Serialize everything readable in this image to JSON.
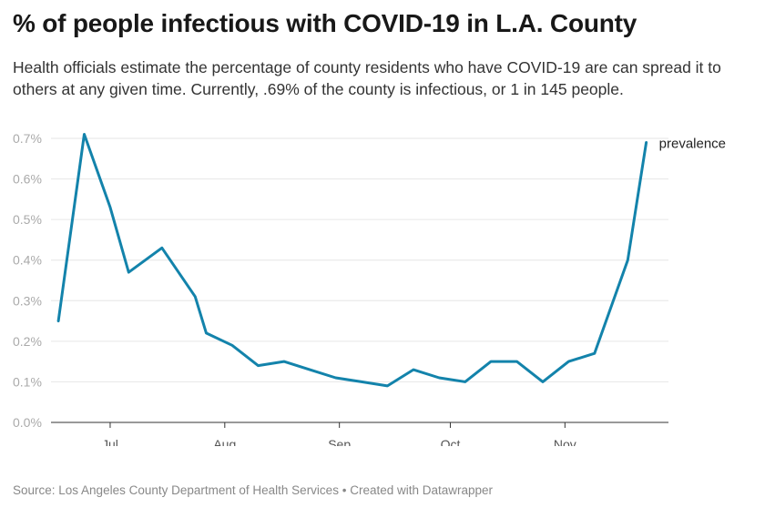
{
  "title": "% of people infectious with COVID-19 in L.A. County",
  "subtitle": "Health officials estimate the percentage of county residents who have COVID-19 are can spread it to others at any given time. Currently, .69% of the county is infectious, or 1 in 145 people.",
  "footer": {
    "source": "Source: Los Angeles County Department of Health Services",
    "separator": "•",
    "credit": "Created with Datawrapper"
  },
  "colors": {
    "line": "#1383ab",
    "grid": "#e6e6e6",
    "axis": "#333333",
    "tick_label": "#aaaaaa"
  },
  "chart_data": {
    "type": "line",
    "x_domain": [
      "2020-06-15",
      "2020-11-29"
    ],
    "ylim": [
      0,
      0.7
    ],
    "y_ticks": [
      {
        "value": 0,
        "label": "0.0%"
      },
      {
        "value": 0.1,
        "label": "0.1%"
      },
      {
        "value": 0.2,
        "label": "0.2%"
      },
      {
        "value": 0.3,
        "label": "0.3%"
      },
      {
        "value": 0.4,
        "label": "0.4%"
      },
      {
        "value": 0.5,
        "label": "0.5%"
      },
      {
        "value": 0.6,
        "label": "0.6%"
      },
      {
        "value": 0.7,
        "label": "0.7%"
      }
    ],
    "x_ticks": [
      {
        "date": "2020-07-01",
        "label": "Jul"
      },
      {
        "date": "2020-08-01",
        "label": "Aug"
      },
      {
        "date": "2020-09-01",
        "label": "Sep"
      },
      {
        "date": "2020-10-01",
        "label": "Oct"
      },
      {
        "date": "2020-11-01",
        "label": "Nov"
      }
    ],
    "series": [
      {
        "name": "prevalence",
        "points": [
          {
            "x": "2020-06-17",
            "y": 0.25
          },
          {
            "x": "2020-06-24",
            "y": 0.71
          },
          {
            "x": "2020-07-01",
            "y": 0.53
          },
          {
            "x": "2020-07-06",
            "y": 0.37
          },
          {
            "x": "2020-07-15",
            "y": 0.43
          },
          {
            "x": "2020-07-24",
            "y": 0.31
          },
          {
            "x": "2020-07-27",
            "y": 0.22
          },
          {
            "x": "2020-08-03",
            "y": 0.19
          },
          {
            "x": "2020-08-10",
            "y": 0.14
          },
          {
            "x": "2020-08-17",
            "y": 0.15
          },
          {
            "x": "2020-08-24",
            "y": 0.13
          },
          {
            "x": "2020-08-31",
            "y": 0.11
          },
          {
            "x": "2020-09-07",
            "y": 0.1
          },
          {
            "x": "2020-09-14",
            "y": 0.09
          },
          {
            "x": "2020-09-21",
            "y": 0.13
          },
          {
            "x": "2020-09-28",
            "y": 0.11
          },
          {
            "x": "2020-10-05",
            "y": 0.1
          },
          {
            "x": "2020-10-12",
            "y": 0.15
          },
          {
            "x": "2020-10-19",
            "y": 0.15
          },
          {
            "x": "2020-10-26",
            "y": 0.1
          },
          {
            "x": "2020-11-02",
            "y": 0.15
          },
          {
            "x": "2020-11-09",
            "y": 0.17
          },
          {
            "x": "2020-11-18",
            "y": 0.4
          },
          {
            "x": "2020-11-23",
            "y": 0.69
          }
        ]
      }
    ],
    "grid": "horizontal",
    "legend": "end-of-line label"
  }
}
